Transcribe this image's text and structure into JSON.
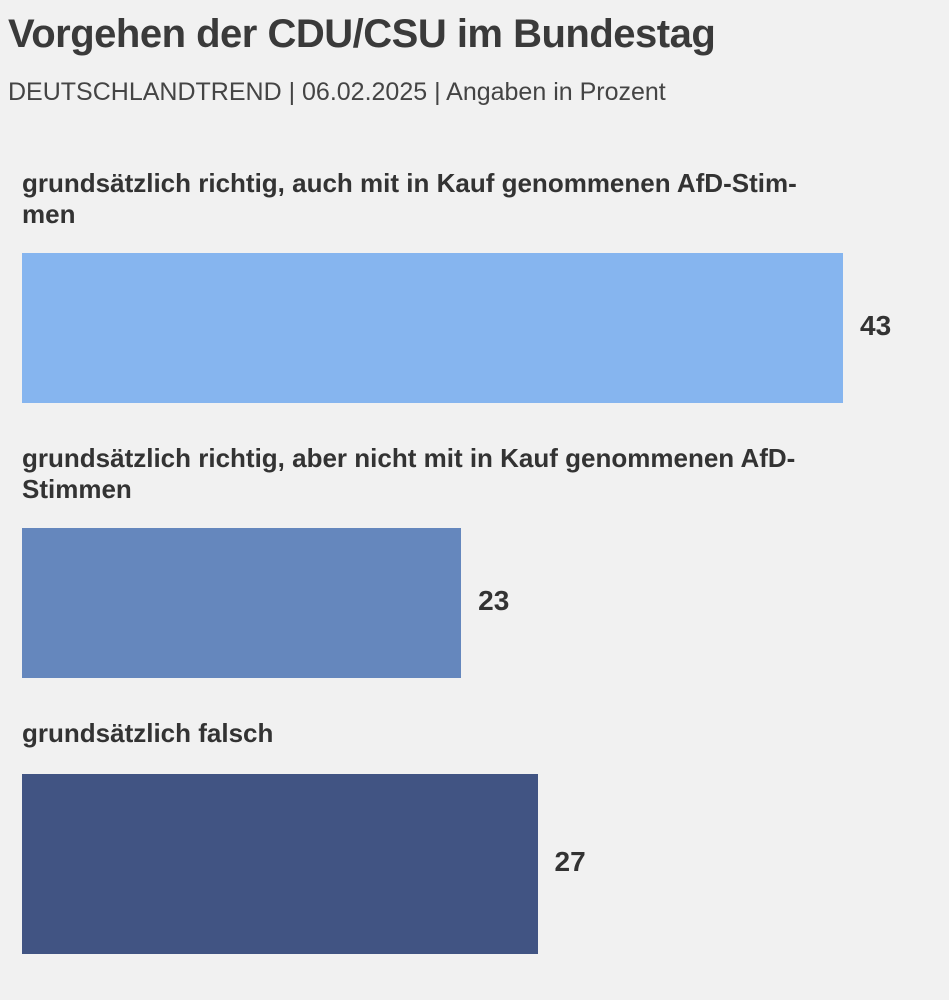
{
  "chart_data": {
    "type": "bar",
    "orientation": "horizontal",
    "title": "Vorgehen der CDU/CSU im Bundestag",
    "subtitle": "DEUTSCHLANDTREND | 06.02.2025 | Angaben in Prozent",
    "categories": [
      "grundsätzlich richtig, auch mit in Kauf genommenen AfD-Stim-\nmen",
      "grundsätzlich richtig, aber nicht mit in Kauf genommenen AfD-Stimmen",
      "grundsätzlich falsch"
    ],
    "values": [
      43,
      23,
      27
    ],
    "value_labels": [
      "43",
      "23",
      "27"
    ],
    "colors": [
      "#86b5ef",
      "#6587bd",
      "#415483"
    ],
    "xlim": [
      0,
      43
    ],
    "xlabel": "",
    "ylabel": "",
    "grid": false,
    "legend": "none"
  }
}
